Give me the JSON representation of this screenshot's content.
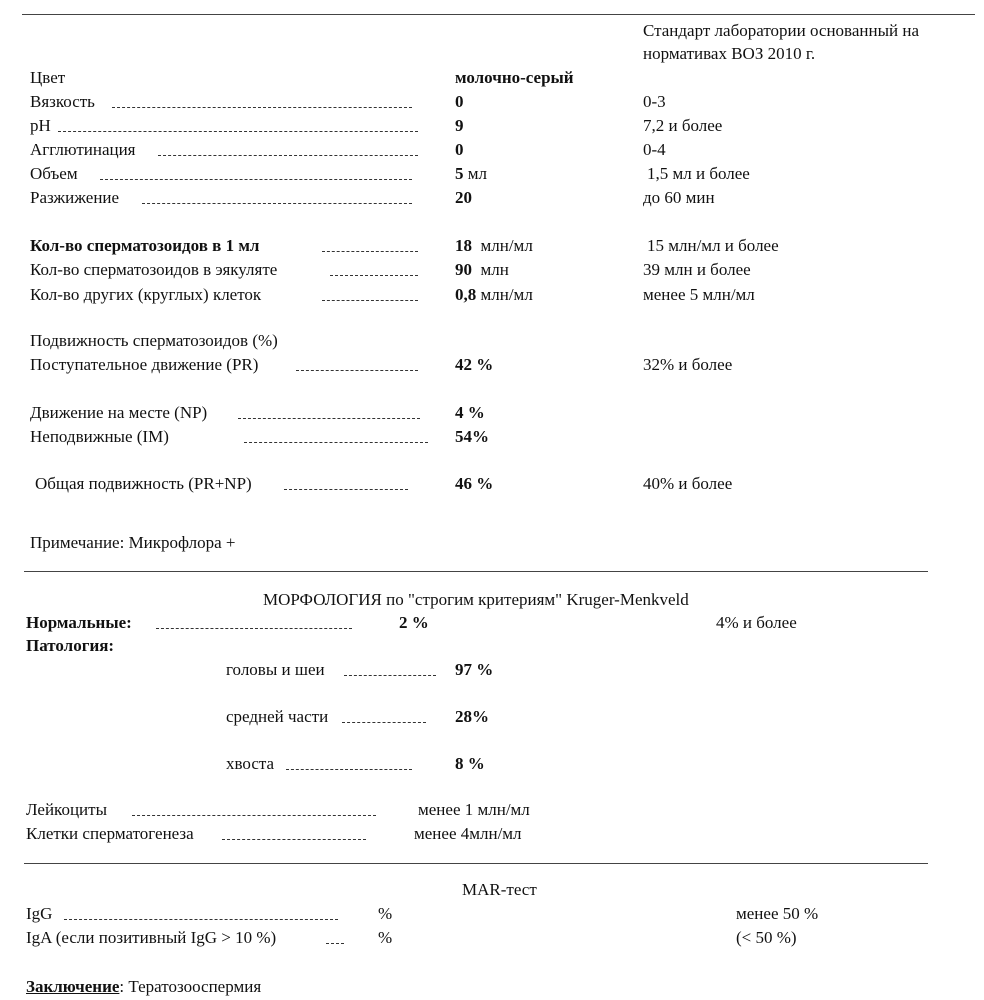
{
  "standard_header": [
    "Стандарт лаборатории основанный на",
    "нормативах  ВОЗ 2010 г."
  ],
  "physical": [
    {
      "label": "Цвет",
      "value": "молочно-серый",
      "unit": "",
      "norm": ""
    },
    {
      "label": "Вязкость",
      "value": "0",
      "unit": "",
      "norm": "0-3"
    },
    {
      "label": "pH",
      "value": "9",
      "unit": "",
      "norm": "7,2 и более"
    },
    {
      "label": "Агглютинация",
      "value": "0",
      "unit": "",
      "norm": "0-4"
    },
    {
      "label": "Объем",
      "value": "5",
      "unit": "мл",
      "norm": "1,5 мл и более"
    },
    {
      "label": "Разжижение",
      "value": "20",
      "unit": "",
      "norm": "до 60 мин"
    }
  ],
  "counts": [
    {
      "label": "Кол-во сперматозоидов в 1 мл",
      "value": "18",
      "unit": "млн/мл",
      "norm": "15 млн/мл и более"
    },
    {
      "label": "Кол-во сперматозоидов в эякуляте",
      "value": "90",
      "unit": "млн",
      "norm": "39 млн и более"
    },
    {
      "label": "Кол-во других (круглых) клеток",
      "value": "0,8",
      "unit": "млн/мл",
      "norm": "менее 5 млн/мл"
    }
  ],
  "motility": {
    "title": "Подвижность сперматозоидов (%)",
    "pr": {
      "label": "Поступательное движение (PR)",
      "value": "42 %",
      "norm": "32% и более"
    },
    "np": {
      "label": "Движение на месте  (NP)",
      "value": "4 %"
    },
    "im": {
      "label": "Неподвижные   (IM)",
      "value": "54%"
    },
    "total": {
      "label": "Общая подвижность (PR+NP)",
      "value": "46 %",
      "norm": "40% и более"
    }
  },
  "note": "Примечание: Микрофлора +",
  "morphology": {
    "title": "МОРФОЛОГИЯ по \"строгим критериям\" Kruger-Menkveld",
    "normal": {
      "label": "Нормальные:",
      "value": "2 %",
      "norm": "4% и более"
    },
    "pathology_label": "Патология:",
    "head": {
      "label": "головы  и шеи",
      "value": "97 %"
    },
    "mid": {
      "label": "средней части",
      "value": "28%"
    },
    "tail": {
      "label": "хвоста",
      "value": "8 %"
    }
  },
  "leukocytes": {
    "label": "Лейкоциты",
    "value": "менее 1 млн/мл"
  },
  "spermatogenesis": {
    "label": "Клетки сперматогенеза",
    "value": "менее 4млн/мл"
  },
  "mar": {
    "title": "MAR-тест",
    "igg": {
      "label": "IgG",
      "value": "%",
      "norm": "менее 50 %"
    },
    "iga": {
      "label": "IgA (если позитивный IgG > 10 %)",
      "value": "%",
      "norm": "(< 50 %)"
    }
  },
  "conclusion": {
    "label": "Заключение",
    "text": ": Тератозооспермия"
  }
}
